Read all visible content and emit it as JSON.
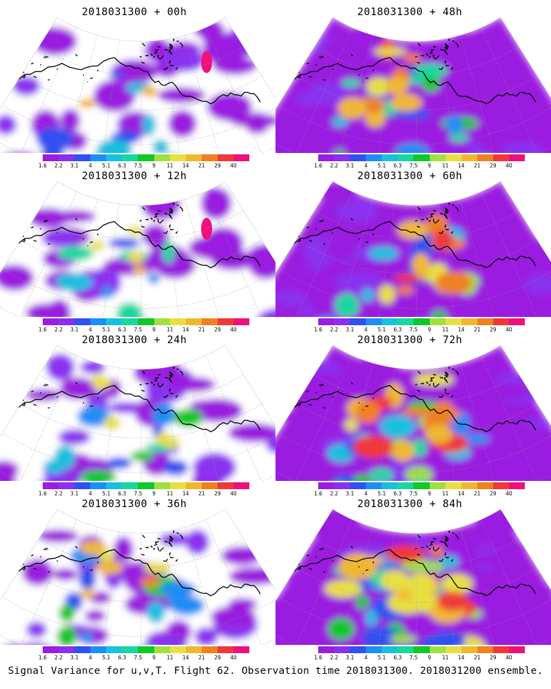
{
  "panels": [
    {
      "id": "p00",
      "title": "2018031300 + 00h",
      "intensity": 0.15
    },
    {
      "id": "p48",
      "title": "2018031300 + 48h",
      "intensity": 0.7
    },
    {
      "id": "p12",
      "title": "2018031300 + 12h",
      "intensity": 0.25
    },
    {
      "id": "p60",
      "title": "2018031300 + 60h",
      "intensity": 0.8
    },
    {
      "id": "p24",
      "title": "2018031300 + 24h",
      "intensity": 0.35
    },
    {
      "id": "p72",
      "title": "2018031300 + 72h",
      "intensity": 0.9
    },
    {
      "id": "p36",
      "title": "2018031300 + 36h",
      "intensity": 0.45
    },
    {
      "id": "p84",
      "title": "2018031300 + 84h",
      "intensity": 1.0
    }
  ],
  "colorbar": {
    "ticks": [
      "1.6",
      "2.2",
      "3.1",
      "4",
      "5.1",
      "6.3",
      "7.5",
      "9",
      "11",
      "14",
      "21",
      "29",
      "40"
    ],
    "colors": [
      "#9a1ee0",
      "#8a30f0",
      "#3050f0",
      "#1c8ef6",
      "#18c0e0",
      "#18d8a0",
      "#10c828",
      "#a0e040",
      "#e8e040",
      "#f0b830",
      "#f08020",
      "#f03838",
      "#f0107c"
    ]
  },
  "footer": "Signal Variance for u,v,T. Flight 62. Observation time 2018031300. 2018031200 ensemble."
}
